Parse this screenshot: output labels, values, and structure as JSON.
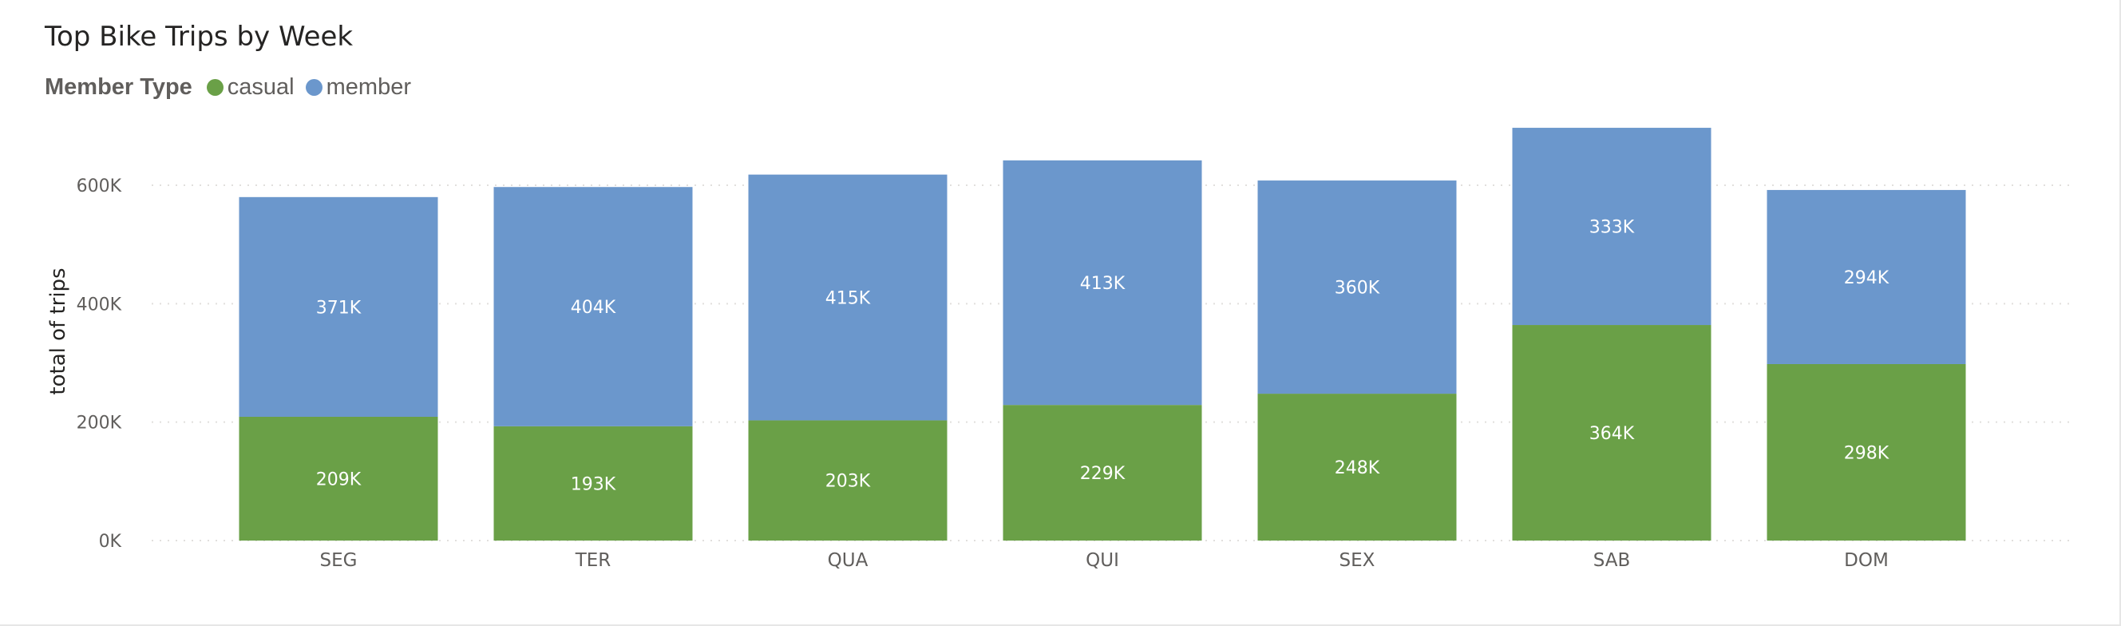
{
  "title": "Top Bike Trips by Week",
  "legend": {
    "title": "Member Type",
    "items": [
      {
        "label": "casual",
        "color": "#6aa047"
      },
      {
        "label": "member",
        "color": "#6b97cc"
      }
    ]
  },
  "chart_data": {
    "type": "bar",
    "stacked": true,
    "title": "Top Bike Trips by Week",
    "xlabel": "",
    "ylabel": "total of trips",
    "categories": [
      "SEG",
      "TER",
      "QUA",
      "QUI",
      "SEX",
      "SAB",
      "DOM"
    ],
    "series": [
      {
        "name": "casual",
        "color": "#6aa047",
        "values": [
          209000,
          193000,
          203000,
          229000,
          248000,
          364000,
          298000
        ],
        "labels": [
          "209K",
          "193K",
          "203K",
          "229K",
          "248K",
          "364K",
          "298K"
        ]
      },
      {
        "name": "member",
        "color": "#6b97cc",
        "values": [
          371000,
          404000,
          415000,
          413000,
          360000,
          333000,
          294000
        ],
        "labels": [
          "371K",
          "404K",
          "415K",
          "413K",
          "360K",
          "333K",
          "294K"
        ]
      }
    ],
    "ylim": [
      0,
      700000
    ],
    "yticks": [
      0,
      200000,
      400000,
      600000
    ],
    "ytick_labels": [
      "0K",
      "200K",
      "400K",
      "600K"
    ],
    "grid": true,
    "legend_position": "top-left"
  }
}
